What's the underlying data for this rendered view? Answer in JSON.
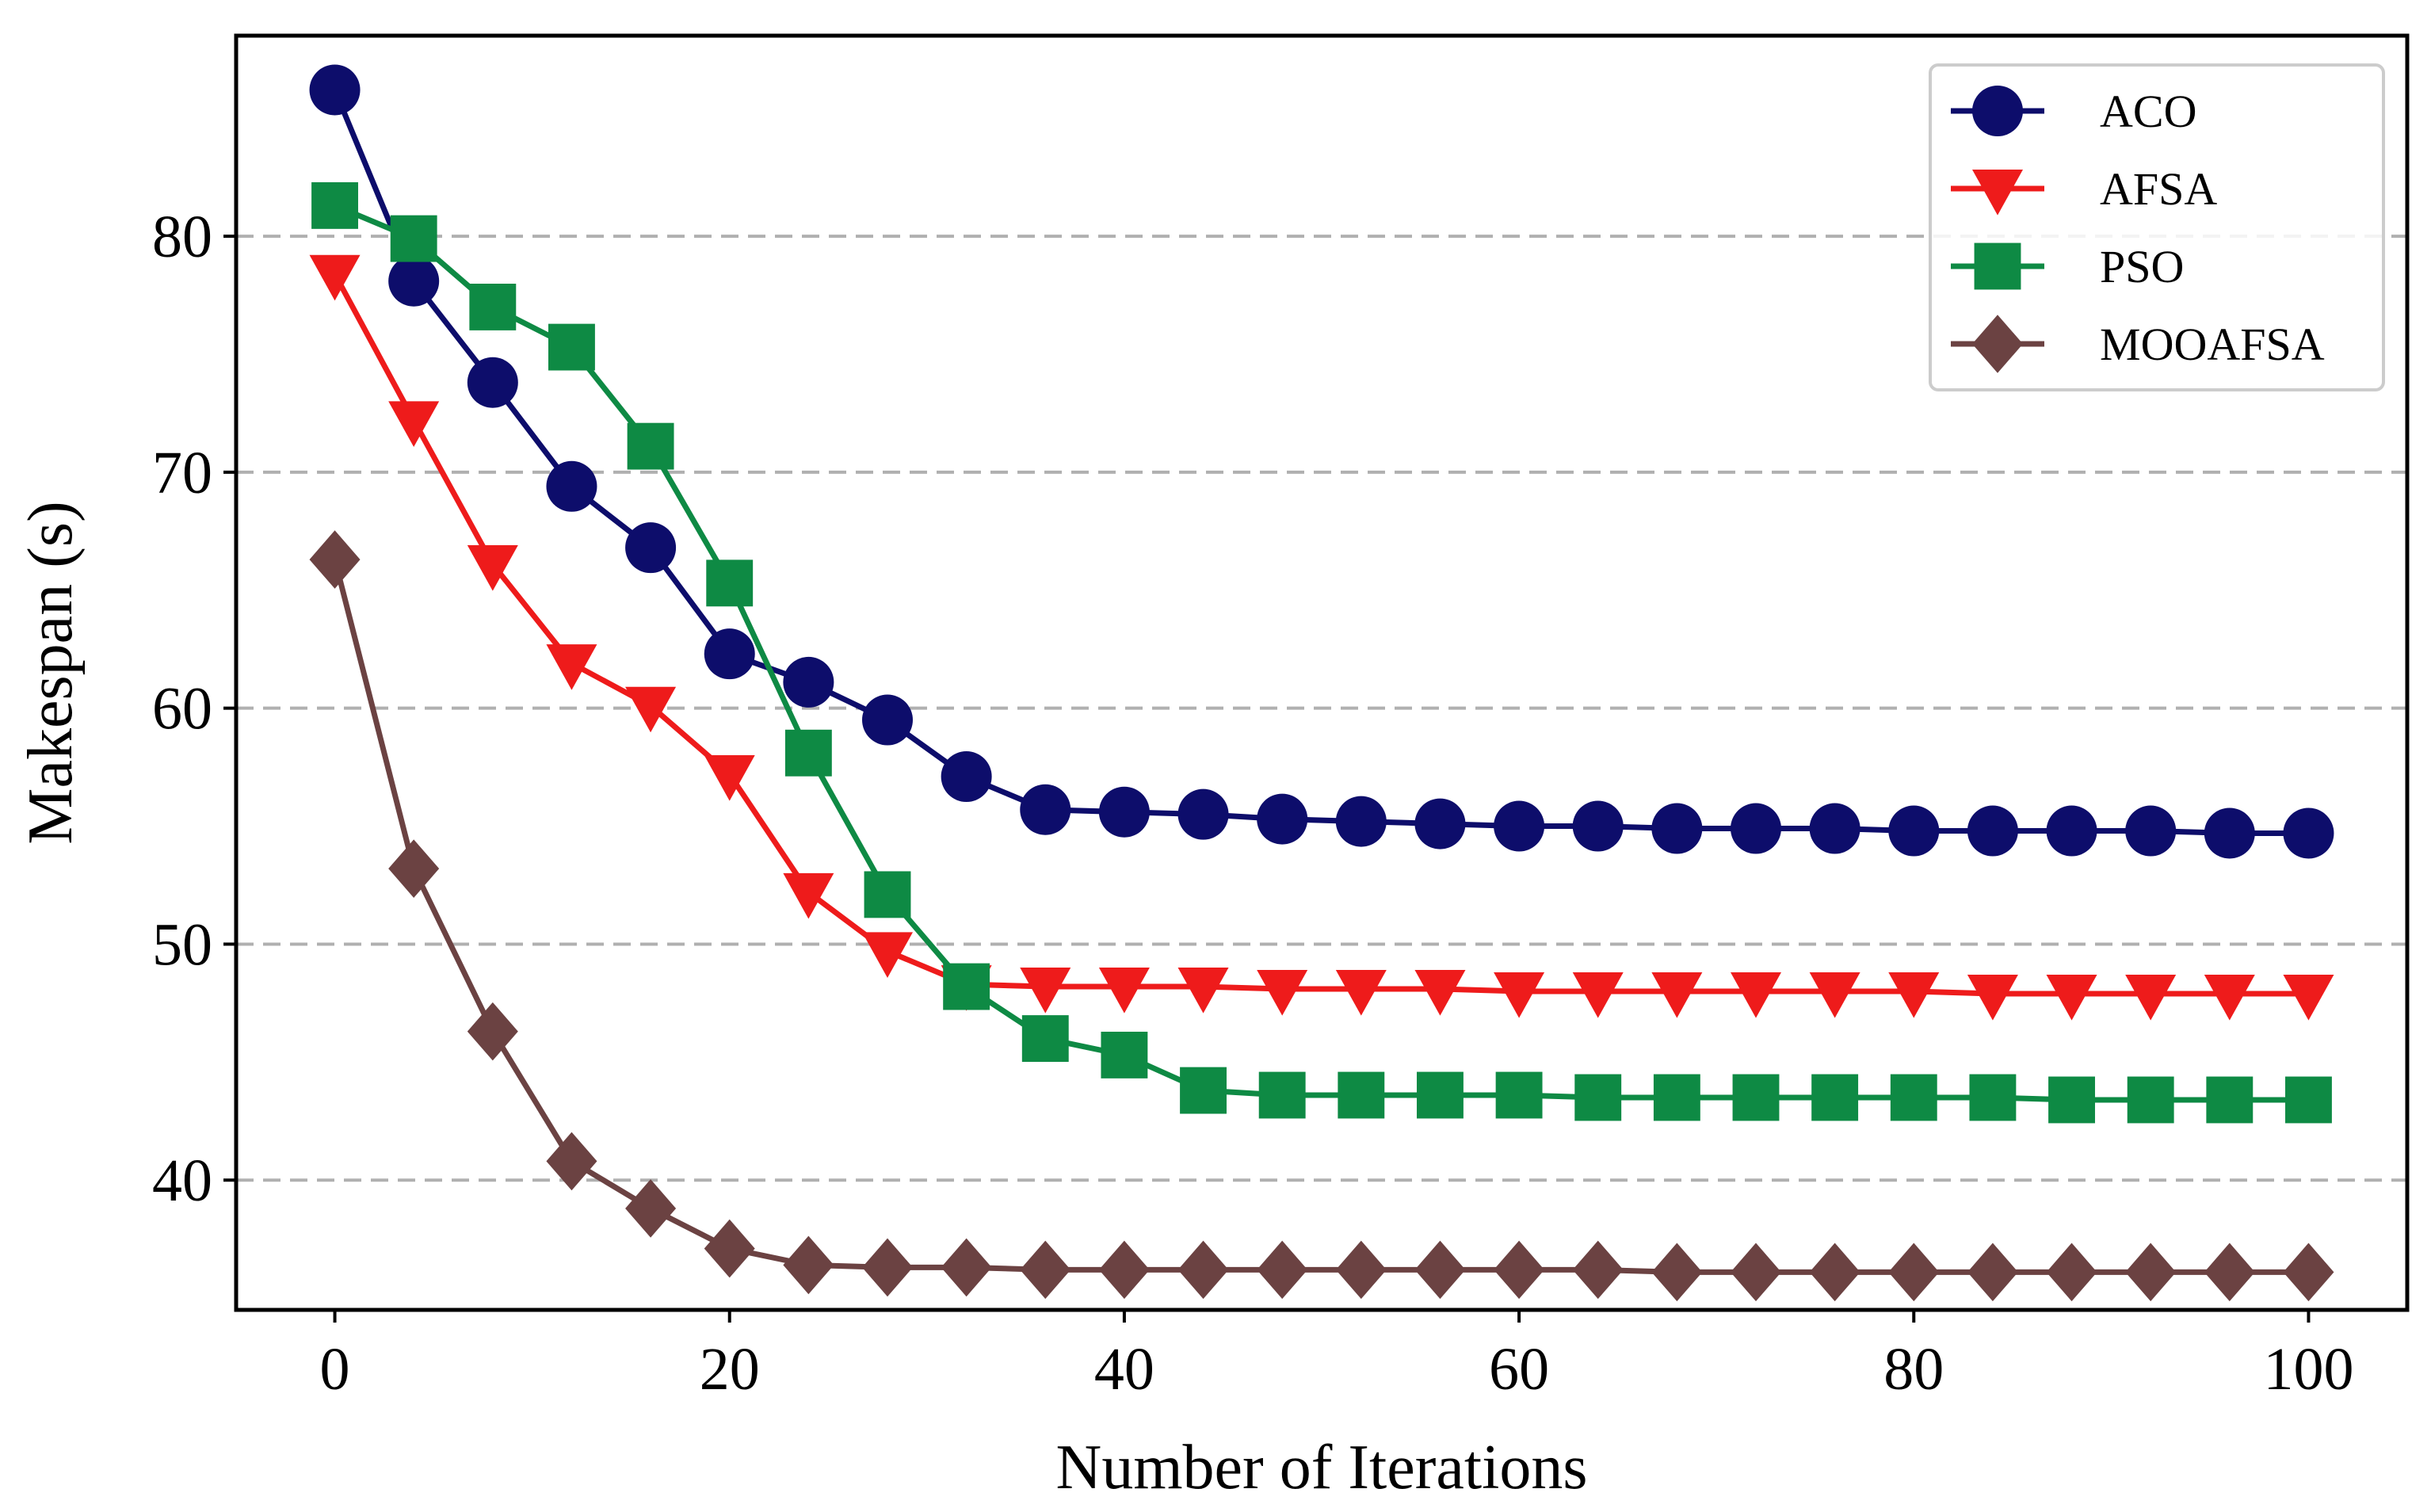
{
  "chart_data": {
    "type": "line",
    "title": "",
    "xlabel": "Number of Iterations",
    "ylabel": "Makespan (s)",
    "xlim": [
      -5,
      105
    ],
    "ylim": [
      34.5,
      88.5
    ],
    "xticks": [
      0,
      20,
      40,
      60,
      80,
      100
    ],
    "yticks": [
      40,
      50,
      60,
      70,
      80
    ],
    "grid": "horizontal dashed",
    "legend_position": "top-right",
    "x": [
      0,
      4,
      8,
      12,
      16,
      20,
      24,
      28,
      32,
      36,
      40,
      44,
      48,
      52,
      56,
      60,
      64,
      68,
      72,
      76,
      80,
      84,
      88,
      92,
      96,
      100
    ],
    "series": [
      {
        "name": "ACO",
        "color": "#0d0d6b",
        "marker": "circle",
        "values": [
          86.2,
          78.1,
          73.8,
          69.4,
          66.8,
          62.3,
          61.1,
          59.5,
          57.1,
          55.7,
          55.6,
          55.5,
          55.3,
          55.2,
          55.1,
          55.0,
          55.0,
          54.9,
          54.9,
          54.9,
          54.8,
          54.8,
          54.8,
          54.8,
          54.7,
          54.7
        ]
      },
      {
        "name": "AFSA",
        "color": "#ee1b1b",
        "marker": "triangle-down",
        "values": [
          78.4,
          72.2,
          66.1,
          61.9,
          60.1,
          57.2,
          52.2,
          49.7,
          48.3,
          48.2,
          48.2,
          48.2,
          48.1,
          48.1,
          48.1,
          48.0,
          48.0,
          48.0,
          48.0,
          48.0,
          48.0,
          47.9,
          47.9,
          47.9,
          47.9,
          47.9
        ]
      },
      {
        "name": "PSO",
        "color": "#0e8a44",
        "marker": "square",
        "values": [
          81.3,
          79.9,
          77.0,
          75.3,
          71.1,
          65.3,
          58.1,
          52.1,
          48.2,
          46.0,
          45.3,
          43.8,
          43.6,
          43.6,
          43.6,
          43.6,
          43.5,
          43.5,
          43.5,
          43.5,
          43.5,
          43.5,
          43.4,
          43.4,
          43.4,
          43.4
        ]
      },
      {
        "name": "MOOAFSA",
        "color": "#6b4242",
        "marker": "diamond",
        "values": [
          66.3,
          53.2,
          46.3,
          40.8,
          38.8,
          37.1,
          36.4,
          36.3,
          36.3,
          36.2,
          36.2,
          36.2,
          36.2,
          36.2,
          36.2,
          36.2,
          36.2,
          36.1,
          36.1,
          36.1,
          36.1,
          36.1,
          36.1,
          36.1,
          36.1,
          36.1
        ]
      }
    ]
  }
}
